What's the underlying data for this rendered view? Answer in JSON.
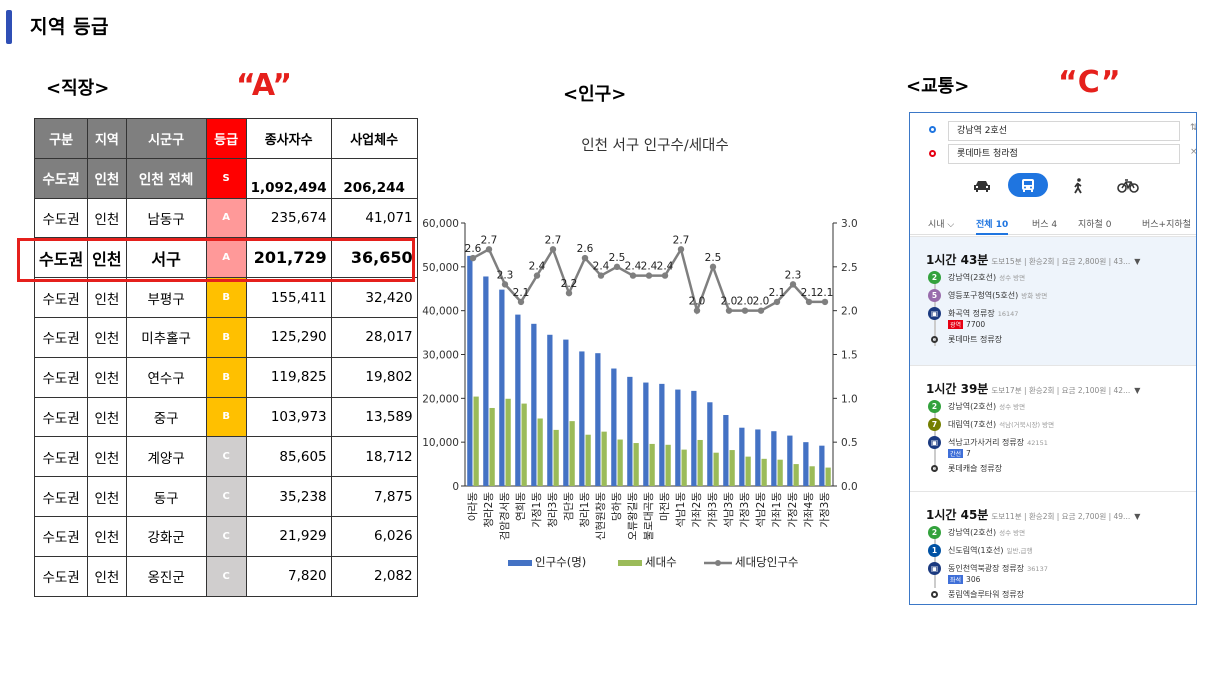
{
  "page": {
    "title": "지역 등급"
  },
  "sections": {
    "workplace": {
      "label": "<직장>",
      "grade": "“A”"
    },
    "population": {
      "label": "<인구>"
    },
    "transit": {
      "label": "<교통>",
      "grade": "“C”"
    }
  },
  "table": {
    "headers": [
      "구분",
      "지역",
      "시군구",
      "등급",
      "종사자수",
      "사업체수"
    ],
    "total": {
      "division": "수도권",
      "region": "인천",
      "district": "인천 전체",
      "grade": "S",
      "employees": "1,092,494",
      "businesses": "206,244"
    },
    "rows": [
      {
        "division": "수도권",
        "region": "인천",
        "district": "남동구",
        "grade": "A",
        "employees": "235,674",
        "businesses": "41,071"
      },
      {
        "division": "수도권",
        "region": "인천",
        "district": "서구",
        "grade": "A",
        "employees": "201,729",
        "businesses": "36,650"
      },
      {
        "division": "수도권",
        "region": "인천",
        "district": "부평구",
        "grade": "B",
        "employees": "155,411",
        "businesses": "32,420"
      },
      {
        "division": "수도권",
        "region": "인천",
        "district": "미추홀구",
        "grade": "B",
        "employees": "125,290",
        "businesses": "28,017"
      },
      {
        "division": "수도권",
        "region": "인천",
        "district": "연수구",
        "grade": "B",
        "employees": "119,825",
        "businesses": "19,802"
      },
      {
        "division": "수도권",
        "region": "인천",
        "district": "중구",
        "grade": "B",
        "employees": "103,973",
        "businesses": "13,589"
      },
      {
        "division": "수도권",
        "region": "인천",
        "district": "계양구",
        "grade": "C",
        "employees": "85,605",
        "businesses": "18,712"
      },
      {
        "division": "수도권",
        "region": "인천",
        "district": "동구",
        "grade": "C",
        "employees": "35,238",
        "businesses": "7,875"
      },
      {
        "division": "수도권",
        "region": "인천",
        "district": "강화군",
        "grade": "C",
        "employees": "21,929",
        "businesses": "6,026"
      },
      {
        "division": "수도권",
        "region": "인천",
        "district": "옹진군",
        "grade": "C",
        "employees": "7,820",
        "businesses": "2,082"
      }
    ],
    "grade_colors": {
      "S": "#ff0000",
      "A": "#ff9999",
      "B": "#ffc000",
      "C": "#d0cece"
    },
    "highlight_color": "#e5201c"
  },
  "chart_data": {
    "type": "bar",
    "title": "인천 서구 인구수/세대수",
    "categories": [
      "아라동",
      "청라2동",
      "검암경서동",
      "연희동",
      "가정1동",
      "청라3동",
      "검단동",
      "청라1동",
      "신현원창동",
      "당하동",
      "오류왕길동",
      "불로대곡동",
      "마전동",
      "석남1동",
      "가좌2동",
      "가좌3동",
      "석남3동",
      "가정3동",
      "석남2동",
      "가좌1동",
      "가정2동",
      "가좌4동",
      "가정3동"
    ],
    "series": [
      {
        "name": "인구수(명)",
        "type": "bar",
        "axis": "left",
        "color": "#4472c4",
        "values": [
          52500,
          47800,
          44800,
          39100,
          37000,
          34500,
          33400,
          30700,
          30300,
          26800,
          24900,
          23600,
          23300,
          22000,
          21700,
          19100,
          16200,
          13300,
          12900,
          12500,
          11500,
          10000,
          9200
        ]
      },
      {
        "name": "세대수",
        "type": "bar",
        "axis": "left",
        "color": "#9bbb59",
        "values": [
          20400,
          17800,
          19900,
          18800,
          15400,
          12800,
          14800,
          11700,
          12400,
          10600,
          9800,
          9600,
          9400,
          8300,
          10500,
          7600,
          8200,
          6700,
          6200,
          6000,
          5000,
          4500,
          4200
        ]
      },
      {
        "name": "세대당인구수",
        "type": "line",
        "axis": "right",
        "color": "#7f7f7f",
        "values": [
          2.6,
          2.7,
          2.3,
          2.1,
          2.4,
          2.7,
          2.2,
          2.6,
          2.4,
          2.5,
          2.4,
          2.4,
          2.4,
          2.7,
          2.0,
          2.5,
          2.0,
          2.0,
          2.0,
          2.1,
          2.3,
          2.1,
          2.1
        ]
      }
    ],
    "line_labels": [
      "2.6",
      "2.7",
      "2.3",
      "2.1",
      "2.4",
      "2.7",
      "2.2",
      "2.6",
      "2.4",
      "2.5",
      "2.4",
      "2.4",
      "2.4",
      "2.7",
      "2.0",
      "2.5",
      "2.0",
      "2.0",
      "2.0",
      "2.1",
      "2.3",
      "2.1",
      "2.1"
    ],
    "y_left": {
      "min": 0,
      "max": 60000,
      "ticks": [
        "0",
        "10,000",
        "20,000",
        "30,000",
        "40,000",
        "50,000",
        "60,000"
      ]
    },
    "y_right": {
      "min": 0,
      "max": 3.0,
      "ticks": [
        "0.0",
        "0.5",
        "1.0",
        "1.5",
        "2.0",
        "2.5",
        "3.0"
      ]
    },
    "legend": "bottom",
    "grid": false
  },
  "transit_app": {
    "origin": "강남역 2호선",
    "destination": "롯데마트 청라점",
    "modes": [
      "car-icon",
      "bus-icon",
      "walk-icon",
      "bike-icon"
    ],
    "active_mode": "bus-icon",
    "tabs": [
      "시내 ⌵",
      "전체 10",
      "버스 4",
      "지하철 0",
      "버스+지하철"
    ],
    "routes": [
      {
        "duration": "1시간 43분",
        "meta": "도보15분 | 환승2회 | 요금 2,800원 | 43...",
        "steps": [
          {
            "badge": "2",
            "color": "#33a23d",
            "name": "강남역(2호선)",
            "sub": "성수 방면"
          },
          {
            "badge": "5",
            "color": "#996cac",
            "name": "영등포구청역(5호선)",
            "sub": "방화 방면"
          },
          {
            "badge": "bus",
            "color": "#1b3a80",
            "name": "화곡역 정류장",
            "sub": "16147",
            "bus_tag": "광역",
            "bus_tag_color": "#e60012",
            "bus_no": "7700"
          },
          {
            "badge": "end",
            "name": "롯데마트 정류장"
          }
        ]
      },
      {
        "duration": "1시간 39분",
        "meta": "도보17분 | 환승2회 | 요금 2,100원 | 42...",
        "steps": [
          {
            "badge": "2",
            "color": "#33a23d",
            "name": "강남역(2호선)",
            "sub": "성수 방면"
          },
          {
            "badge": "7",
            "color": "#747f00",
            "name": "대림역(7호선)",
            "sub": "석남(거북시장) 방면"
          },
          {
            "badge": "bus",
            "color": "#1b3a80",
            "name": "석남고가사거리 정류장",
            "sub": "42151",
            "bus_tag": "간선",
            "bus_tag_color": "#3f6fd8",
            "bus_no": "7"
          },
          {
            "badge": "end",
            "name": "롯데캐슬 정류장"
          }
        ]
      },
      {
        "duration": "1시간 45분",
        "meta": "도보11분 | 환승2회 | 요금 2,700원 | 49...",
        "steps": [
          {
            "badge": "2",
            "color": "#33a23d",
            "name": "강남역(2호선)",
            "sub": "성수 방면"
          },
          {
            "badge": "1",
            "color": "#0052a4",
            "name": "신도림역(1호선)",
            "sub": "일반,급행"
          },
          {
            "badge": "bus",
            "color": "#1b3a80",
            "name": "동인천역북광장 정류장",
            "sub": "36137",
            "bus_tag": "좌석",
            "bus_tag_color": "#3f6fd8",
            "bus_no": "306"
          },
          {
            "badge": "end",
            "name": "풍림엑슬루타워 정류장"
          }
        ]
      }
    ]
  }
}
